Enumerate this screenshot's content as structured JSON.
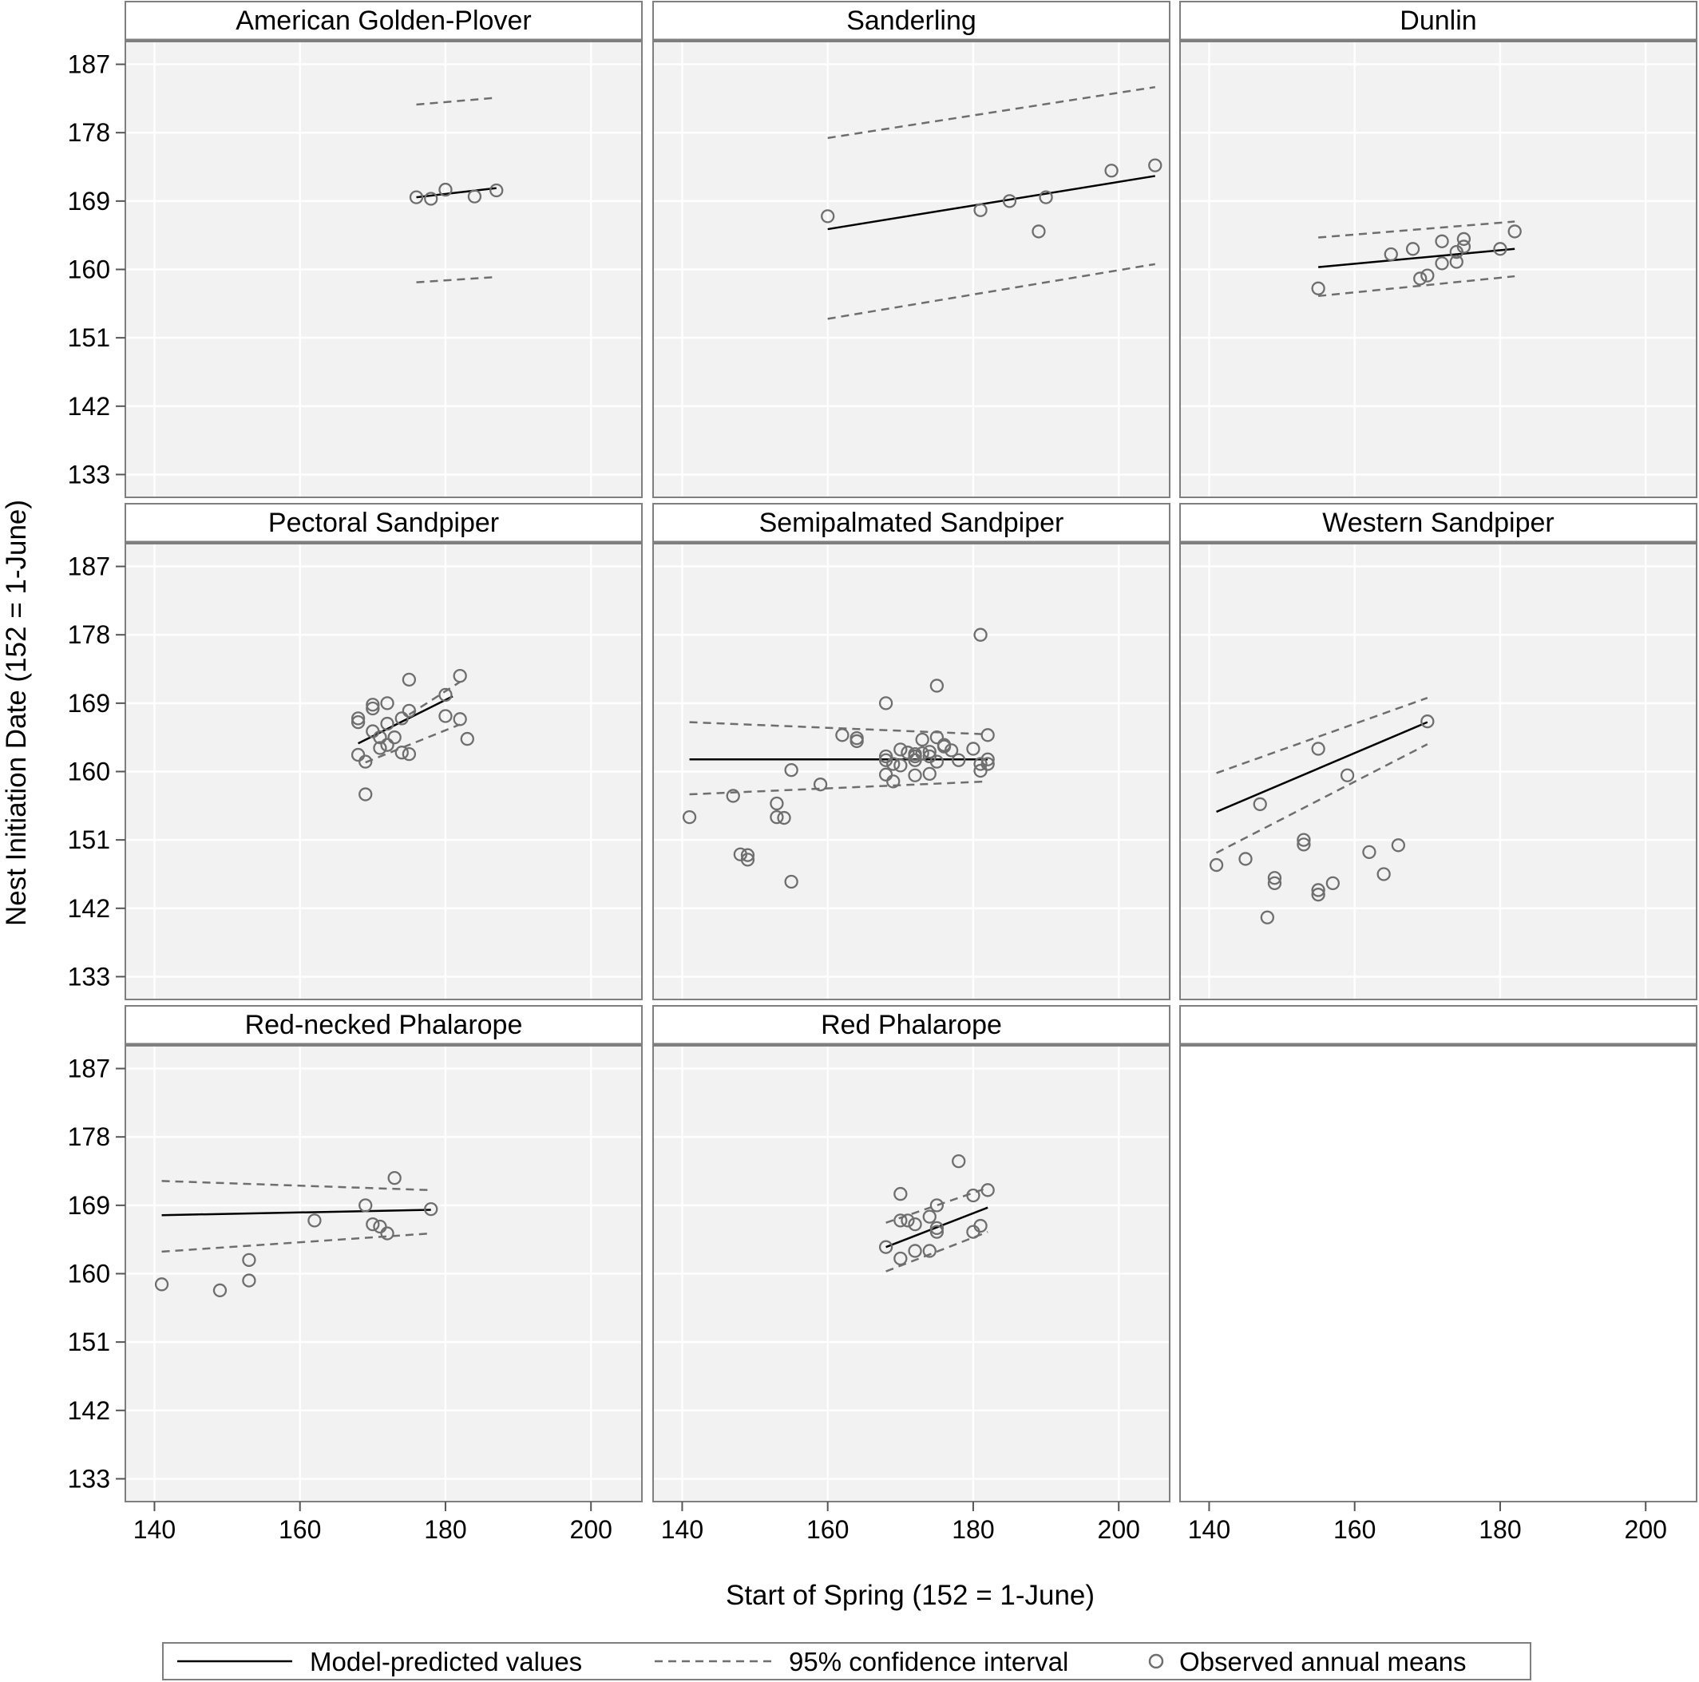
{
  "chart_data": {
    "type": "scatter",
    "layout": "facet-grid-3x3",
    "xlabel": "Start of Spring (152 = 1-June)",
    "ylabel": "Nest Initiation Date (152 = 1-June)",
    "xlim": [
      136,
      207
    ],
    "ylim": [
      130,
      190
    ],
    "xticks": [
      140,
      160,
      180,
      200
    ],
    "yticks": [
      133,
      142,
      151,
      160,
      169,
      178,
      187
    ],
    "grid": true,
    "panel_background": "#f2f2f2",
    "colors": {
      "model": "#000000",
      "ci": "#6e6e6e",
      "points": "#6e6e6e",
      "frame": "#7f7f7f"
    },
    "legend": {
      "position": "bottom",
      "items": [
        {
          "label": "Model-predicted values",
          "style": "solid-line"
        },
        {
          "label": "95% confidence interval",
          "style": "dashed-line"
        },
        {
          "label": "Observed annual means",
          "style": "open-circle"
        }
      ]
    },
    "panels": [
      {
        "title": "American Golden-Plover",
        "model": [
          [
            176,
            169.5
          ],
          [
            187,
            170.7
          ]
        ],
        "ci_upper": [
          [
            176,
            181.7
          ],
          [
            187,
            182.6
          ]
        ],
        "ci_lower": [
          [
            176,
            158.3
          ],
          [
            187,
            159.0
          ]
        ],
        "points": [
          [
            176,
            169.5
          ],
          [
            178,
            169.3
          ],
          [
            180,
            170.5
          ],
          [
            184,
            169.6
          ],
          [
            187,
            170.4
          ]
        ]
      },
      {
        "title": "Sanderling",
        "model": [
          [
            160,
            165.3
          ],
          [
            205,
            172.3
          ]
        ],
        "ci_upper": [
          [
            160,
            177.3
          ],
          [
            205,
            184.0
          ]
        ],
        "ci_lower": [
          [
            160,
            153.5
          ],
          [
            205,
            160.7
          ]
        ],
        "points": [
          [
            160,
            167.0
          ],
          [
            181,
            167.8
          ],
          [
            185,
            169.0
          ],
          [
            189,
            165.0
          ],
          [
            190,
            169.5
          ],
          [
            199,
            173.0
          ],
          [
            205,
            173.7
          ]
        ]
      },
      {
        "title": "Dunlin",
        "model": [
          [
            155,
            160.3
          ],
          [
            182,
            162.7
          ]
        ],
        "ci_upper": [
          [
            155,
            164.2
          ],
          [
            182,
            166.3
          ]
        ],
        "ci_lower": [
          [
            155,
            156.5
          ],
          [
            182,
            159.1
          ]
        ],
        "points": [
          [
            155,
            157.5
          ],
          [
            165,
            162.0
          ],
          [
            168,
            162.7
          ],
          [
            169,
            158.8
          ],
          [
            170,
            159.2
          ],
          [
            172,
            160.8
          ],
          [
            172,
            163.7
          ],
          [
            174,
            161.0
          ],
          [
            174,
            162.3
          ],
          [
            175,
            163.0
          ],
          [
            175,
            164.0
          ],
          [
            180,
            162.7
          ],
          [
            182,
            165.0
          ]
        ]
      },
      {
        "title": "Pectoral Sandpiper",
        "model": [
          [
            168,
            163.7
          ],
          [
            181,
            169.9
          ]
        ],
        "ci_upper": [
          [
            175,
            167.5
          ],
          [
            182,
            171.8
          ]
        ],
        "ci_lower": [
          [
            169,
            161.2
          ],
          [
            182,
            166.2
          ]
        ],
        "points": [
          [
            168,
            167.0
          ],
          [
            168,
            166.5
          ],
          [
            168,
            162.2
          ],
          [
            169,
            161.3
          ],
          [
            169,
            157.0
          ],
          [
            170,
            168.8
          ],
          [
            170,
            168.3
          ],
          [
            170,
            165.3
          ],
          [
            171,
            164.5
          ],
          [
            171,
            163.1
          ],
          [
            172,
            169.0
          ],
          [
            172,
            166.3
          ],
          [
            172,
            163.5
          ],
          [
            173,
            164.5
          ],
          [
            174,
            167.0
          ],
          [
            174,
            162.5
          ],
          [
            175,
            172.1
          ],
          [
            175,
            168.0
          ],
          [
            175,
            162.3
          ],
          [
            180,
            170.1
          ],
          [
            180,
            167.3
          ],
          [
            182,
            172.6
          ],
          [
            182,
            166.9
          ],
          [
            183,
            164.3
          ]
        ]
      },
      {
        "title": "Semipalmated Sandpiper",
        "model": [
          [
            141,
            161.6
          ],
          [
            182,
            161.6
          ]
        ],
        "ci_upper": [
          [
            141,
            166.5
          ],
          [
            182,
            164.9
          ]
        ],
        "ci_lower": [
          [
            141,
            157.0
          ],
          [
            182,
            158.7
          ]
        ],
        "points": [
          [
            141,
            154.0
          ],
          [
            147,
            156.8
          ],
          [
            148,
            149.1
          ],
          [
            149,
            148.4
          ],
          [
            149,
            149.0
          ],
          [
            153,
            155.8
          ],
          [
            153,
            154.0
          ],
          [
            154,
            153.9
          ],
          [
            155,
            160.2
          ],
          [
            155,
            145.5
          ],
          [
            159,
            158.3
          ],
          [
            162,
            164.8
          ],
          [
            164,
            164.4
          ],
          [
            164,
            164.0
          ],
          [
            168,
            169.0
          ],
          [
            168,
            162.0
          ],
          [
            168,
            161.5
          ],
          [
            168,
            159.6
          ],
          [
            169,
            161.0
          ],
          [
            169,
            158.7
          ],
          [
            170,
            162.9
          ],
          [
            170,
            160.8
          ],
          [
            171,
            162.5
          ],
          [
            172,
            162.3
          ],
          [
            172,
            162.0
          ],
          [
            172,
            161.5
          ],
          [
            172,
            159.5
          ],
          [
            173,
            162.4
          ],
          [
            173,
            164.2
          ],
          [
            174,
            162.6
          ],
          [
            174,
            159.7
          ],
          [
            174,
            162.0
          ],
          [
            175,
            171.3
          ],
          [
            175,
            164.5
          ],
          [
            175,
            161.3
          ],
          [
            176,
            163.5
          ],
          [
            176,
            163.3
          ],
          [
            177,
            162.8
          ],
          [
            178,
            161.5
          ],
          [
            180,
            163.0
          ],
          [
            181,
            178.0
          ],
          [
            181,
            160.1
          ],
          [
            181,
            161.0
          ],
          [
            182,
            164.8
          ],
          [
            182,
            161.6
          ],
          [
            182,
            161.0
          ]
        ]
      },
      {
        "title": "Western Sandpiper",
        "model": [
          [
            141,
            154.7
          ],
          [
            170,
            166.5
          ]
        ],
        "ci_upper": [
          [
            141,
            159.8
          ],
          [
            170,
            169.7
          ]
        ],
        "ci_lower": [
          [
            141,
            149.3
          ],
          [
            170,
            163.6
          ]
        ],
        "points": [
          [
            141,
            147.7
          ],
          [
            145,
            148.5
          ],
          [
            147,
            155.7
          ],
          [
            148,
            140.8
          ],
          [
            149,
            146.0
          ],
          [
            149,
            145.3
          ],
          [
            153,
            151.0
          ],
          [
            153,
            150.4
          ],
          [
            155,
            163.0
          ],
          [
            155,
            144.4
          ],
          [
            155,
            143.8
          ],
          [
            157,
            145.3
          ],
          [
            159,
            159.5
          ],
          [
            162,
            149.4
          ],
          [
            164,
            146.5
          ],
          [
            166,
            150.3
          ],
          [
            170,
            166.6
          ]
        ]
      },
      {
        "title": "Red-necked Phalarope",
        "model": [
          [
            141,
            167.7
          ],
          [
            178,
            168.4
          ]
        ],
        "ci_upper": [
          [
            141,
            172.2
          ],
          [
            178,
            171.0
          ]
        ],
        "ci_lower": [
          [
            141,
            162.9
          ],
          [
            178,
            165.3
          ]
        ],
        "points": [
          [
            141,
            158.6
          ],
          [
            149,
            157.8
          ],
          [
            153,
            161.8
          ],
          [
            153,
            159.1
          ],
          [
            162,
            167.0
          ],
          [
            169,
            169.0
          ],
          [
            170,
            166.5
          ],
          [
            171,
            166.2
          ],
          [
            172,
            165.3
          ],
          [
            173,
            172.6
          ],
          [
            178,
            168.5
          ]
        ]
      },
      {
        "title": "Red Phalarope",
        "model": [
          [
            168,
            163.5
          ],
          [
            182,
            168.7
          ]
        ],
        "ci_upper": [
          [
            168,
            166.7
          ],
          [
            182,
            171.3
          ]
        ],
        "ci_lower": [
          [
            168,
            160.3
          ],
          [
            182,
            165.5
          ]
        ],
        "points": [
          [
            168,
            163.5
          ],
          [
            170,
            170.5
          ],
          [
            170,
            167.0
          ],
          [
            170,
            162.0
          ],
          [
            171,
            167.0
          ],
          [
            172,
            166.5
          ],
          [
            172,
            163.0
          ],
          [
            174,
            167.5
          ],
          [
            174,
            163.0
          ],
          [
            175,
            169.0
          ],
          [
            175,
            166.0
          ],
          [
            175,
            165.5
          ],
          [
            178,
            174.8
          ],
          [
            180,
            170.3
          ],
          [
            180,
            165.5
          ],
          [
            181,
            166.3
          ],
          [
            182,
            171.0
          ]
        ]
      },
      {
        "title": "",
        "empty": true
      }
    ]
  }
}
